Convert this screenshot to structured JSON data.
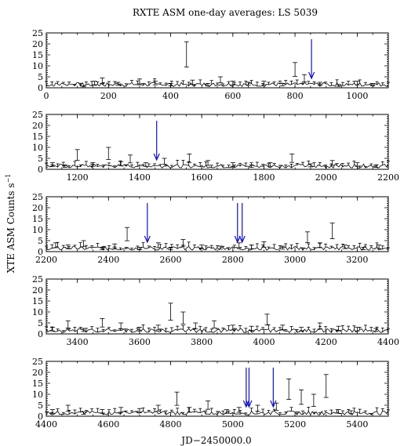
{
  "chart_data": {
    "type": "scatter",
    "title": "RXTE ASM one-day averages: LS 5039",
    "xlabel": "JD−2450000.0",
    "ylabel": "XTE ASM Counts s",
    "ylabel_sup": "−1",
    "style": {
      "data_color": "#000000",
      "arrow_color": "#1010c0",
      "background": "#ffffff"
    },
    "panels": [
      {
        "xlim": [
          0,
          1100
        ],
        "ylim": [
          0,
          25
        ],
        "xticks": [
          0,
          200,
          400,
          600,
          800,
          1000
        ],
        "yticks": [
          0,
          5,
          10,
          15,
          20,
          25
        ],
        "points": [
          [
            120,
            1.0
          ],
          [
            155,
            3.0
          ],
          [
            180,
            4.5
          ],
          [
            230,
            2.5
          ],
          [
            300,
            4.0
          ],
          [
            350,
            3.0
          ],
          [
            400,
            2.0
          ],
          [
            451,
            21.0
          ],
          [
            470,
            3.5
          ],
          [
            520,
            2.0
          ],
          [
            560,
            5.0
          ],
          [
            600,
            3.0
          ],
          [
            650,
            2.5
          ],
          [
            700,
            3.0
          ],
          [
            760,
            2.0
          ],
          [
            800,
            11.5
          ],
          [
            830,
            6.0
          ],
          [
            880,
            2.5
          ],
          [
            940,
            1.5
          ],
          [
            1000,
            3.0
          ],
          [
            1050,
            2.0
          ]
        ],
        "arrows": [
          853
        ]
      },
      {
        "xlim": [
          1100,
          2200
        ],
        "ylim": [
          0,
          25
        ],
        "xticks": [
          1200,
          1400,
          1600,
          1800,
          2000,
          2200
        ],
        "yticks": [
          0,
          5,
          10,
          15,
          20,
          25
        ],
        "points": [
          [
            1120,
            3.0
          ],
          [
            1160,
            2.0
          ],
          [
            1200,
            9.0
          ],
          [
            1250,
            3.0
          ],
          [
            1300,
            10.0
          ],
          [
            1340,
            3.5
          ],
          [
            1370,
            6.5
          ],
          [
            1420,
            3.0
          ],
          [
            1480,
            5.0
          ],
          [
            1560,
            7.0
          ],
          [
            1620,
            4.0
          ],
          [
            1700,
            3.0
          ],
          [
            1760,
            2.0
          ],
          [
            1820,
            3.0
          ],
          [
            1890,
            7.0
          ],
          [
            1950,
            2.5
          ],
          [
            2020,
            4.0
          ],
          [
            2100,
            3.0
          ],
          [
            2160,
            2.0
          ]
        ],
        "arrows": [
          1455
        ]
      },
      {
        "xlim": [
          2200,
          3300
        ],
        "ylim": [
          0,
          25
        ],
        "xticks": [
          2200,
          2400,
          2600,
          2800,
          3000,
          3200
        ],
        "yticks": [
          0,
          5,
          10,
          15,
          20,
          25
        ],
        "points": [
          [
            2230,
            4.0
          ],
          [
            2270,
            3.0
          ],
          [
            2320,
            5.0
          ],
          [
            2380,
            2.0
          ],
          [
            2420,
            3.5
          ],
          [
            2460,
            11.0
          ],
          [
            2500,
            2.0
          ],
          [
            2560,
            4.0
          ],
          [
            2600,
            2.0
          ],
          [
            2640,
            5.5
          ],
          [
            2700,
            3.0
          ],
          [
            2760,
            2.5
          ],
          [
            2820,
            4.0
          ],
          [
            2860,
            3.0
          ],
          [
            2900,
            4.5
          ],
          [
            2960,
            2.5
          ],
          [
            3040,
            9.0
          ],
          [
            3080,
            4.0
          ],
          [
            3120,
            13.0
          ],
          [
            3160,
            3.0
          ],
          [
            3220,
            2.0
          ],
          [
            3270,
            3.0
          ]
        ],
        "arrows": [
          2525,
          2815,
          2830
        ]
      },
      {
        "xlim": [
          3300,
          4400
        ],
        "ylim": [
          0,
          25
        ],
        "xticks": [
          3400,
          3600,
          3800,
          4000,
          4200,
          4400
        ],
        "yticks": [
          0,
          5,
          10,
          15,
          20,
          25
        ],
        "points": [
          [
            3320,
            3.0
          ],
          [
            3370,
            6.0
          ],
          [
            3420,
            2.5
          ],
          [
            3480,
            7.0
          ],
          [
            3540,
            5.0
          ],
          [
            3600,
            3.0
          ],
          [
            3660,
            4.0
          ],
          [
            3700,
            14.0
          ],
          [
            3740,
            10.0
          ],
          [
            3780,
            5.0
          ],
          [
            3840,
            6.0
          ],
          [
            3900,
            4.0
          ],
          [
            3960,
            3.5
          ],
          [
            4010,
            9.0
          ],
          [
            4060,
            4.0
          ],
          [
            4120,
            3.0
          ],
          [
            4180,
            5.0
          ],
          [
            4240,
            3.5
          ],
          [
            4300,
            3.0
          ],
          [
            4360,
            2.5
          ]
        ],
        "arrows": []
      },
      {
        "xlim": [
          4400,
          5500
        ],
        "ylim": [
          0,
          25
        ],
        "xticks": [
          4400,
          4600,
          4800,
          5000,
          5200,
          5400
        ],
        "yticks": [
          0,
          5,
          10,
          15,
          20,
          25
        ],
        "points": [
          [
            4420,
            3.0
          ],
          [
            4470,
            5.0
          ],
          [
            4520,
            2.0
          ],
          [
            4580,
            3.0
          ],
          [
            4640,
            4.0
          ],
          [
            4700,
            3.5
          ],
          [
            4760,
            5.0
          ],
          [
            4820,
            11.0
          ],
          [
            4860,
            4.0
          ],
          [
            4920,
            7.0
          ],
          [
            4980,
            3.0
          ],
          [
            5020,
            4.0
          ],
          [
            5080,
            5.0
          ],
          [
            5140,
            6.0
          ],
          [
            5180,
            17.0
          ],
          [
            5220,
            12.0
          ],
          [
            5260,
            10.0
          ],
          [
            5300,
            19.0
          ],
          [
            5340,
            3.0
          ],
          [
            5380,
            2.5
          ]
        ],
        "arrows": [
          5043,
          5052,
          5130
        ]
      }
    ]
  }
}
